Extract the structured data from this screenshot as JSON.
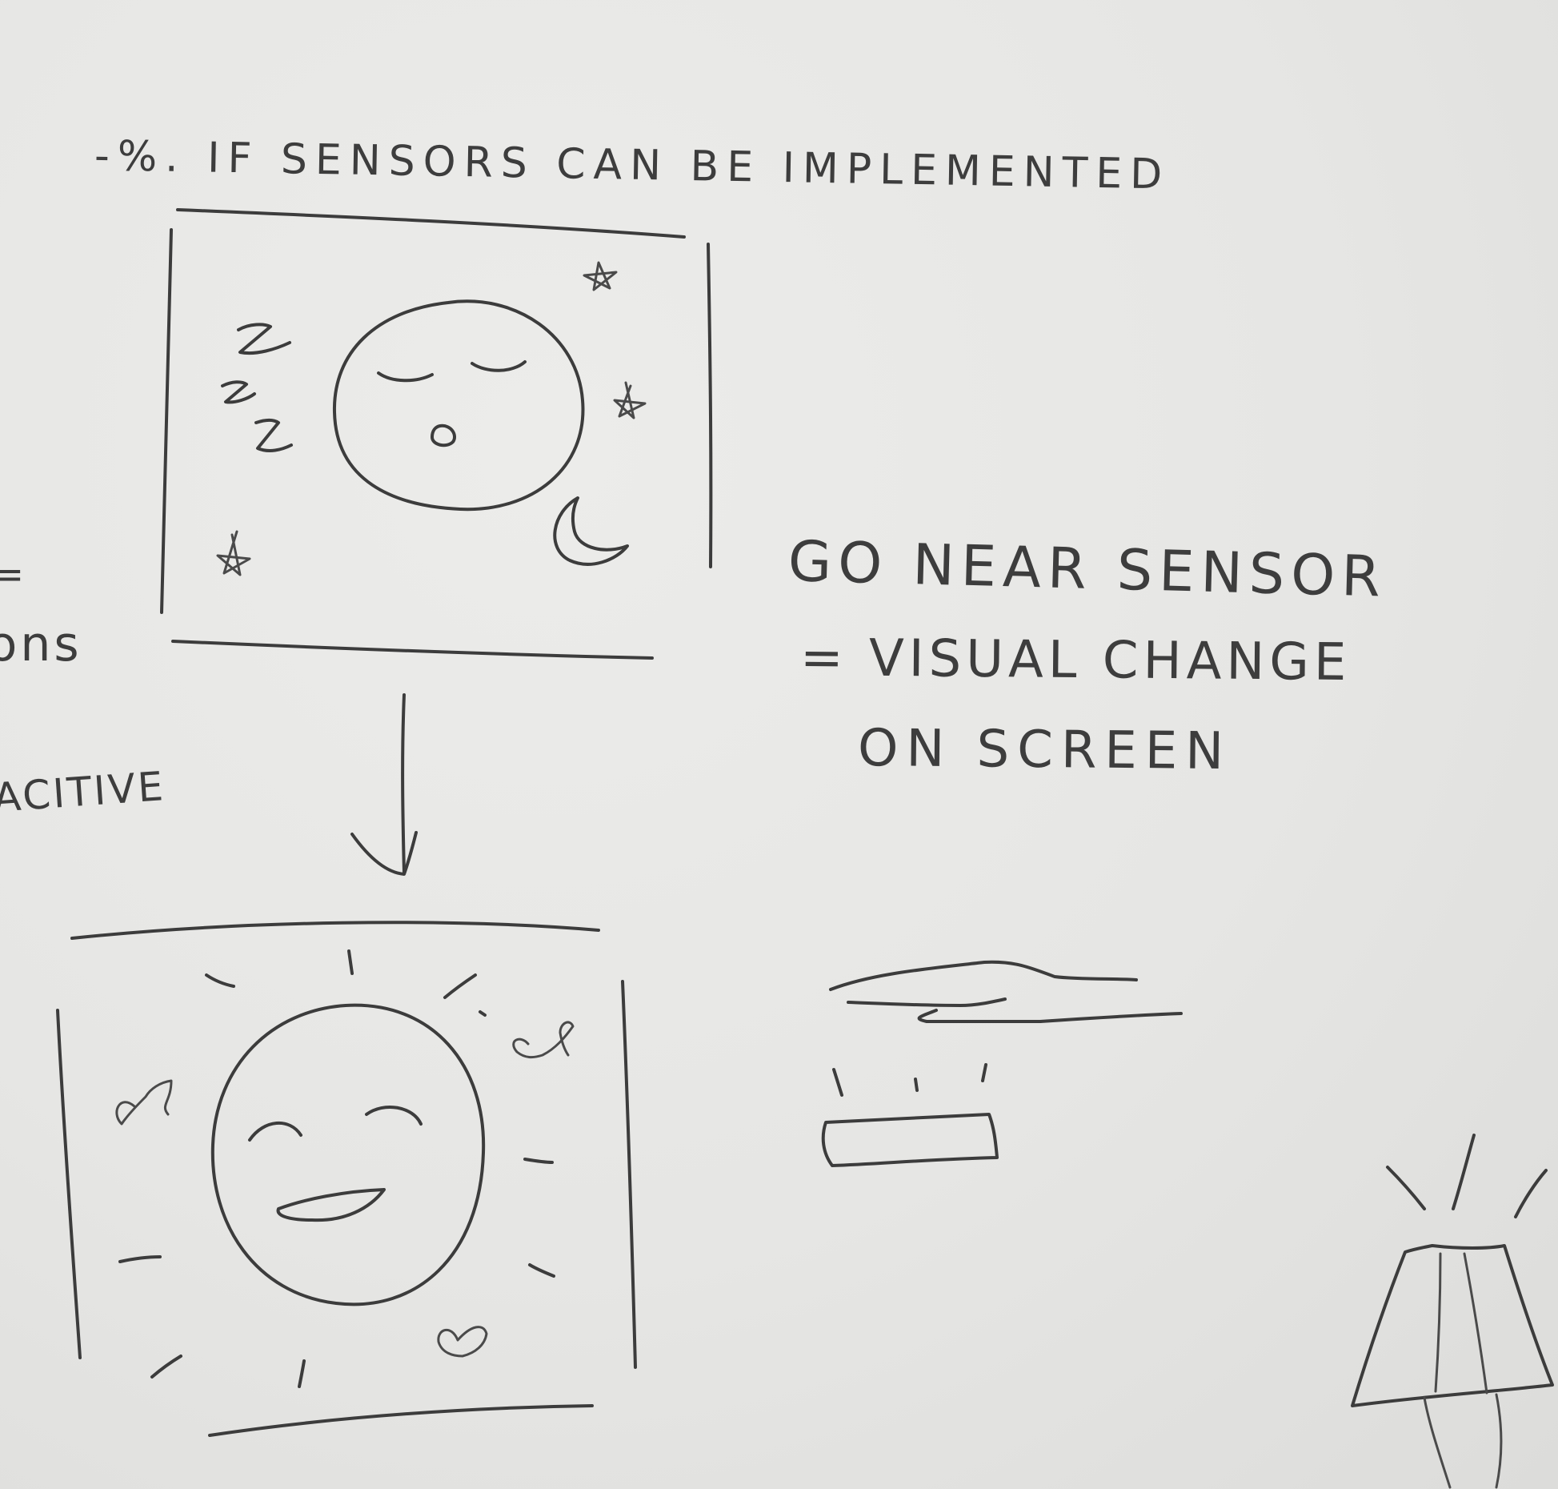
{
  "notes": {
    "heading": "-%. IF SENSORS CAN BE IMPLEMENTED",
    "sensor_line1": "GO NEAR SENSOR",
    "sensor_line2": "= VISUAL CHANGE",
    "sensor_line3": "ON SCREEN",
    "edge_fragment_top": "=",
    "edge_fragment_mid": "ions",
    "edge_fragment_bottom": "ACITIVE"
  },
  "panels": {
    "sleeping": {
      "state": "asleep",
      "icons": [
        "z-letter-icon",
        "star-icon",
        "crescent-moon-icon"
      ]
    },
    "awake": {
      "state": "happy",
      "icons": [
        "sun-ray-icon",
        "heart-icon"
      ]
    }
  },
  "colors": {
    "paper": "#e7e7e5",
    "pencil": "#3c3c3c"
  }
}
